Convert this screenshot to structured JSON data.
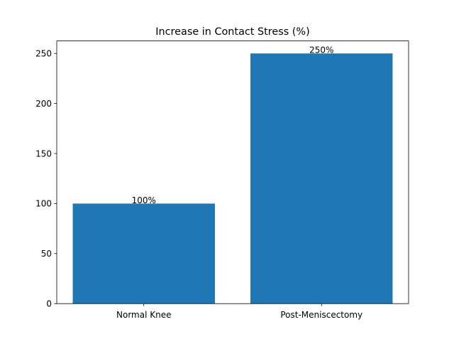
{
  "chart_data": {
    "type": "bar",
    "title": "Increase in Contact Stress (%)",
    "xlabel": "",
    "ylabel": "",
    "categories": [
      "Normal Knee",
      "Post-Meniscectomy"
    ],
    "values": [
      100,
      250
    ],
    "data_labels": [
      "100%",
      "250%"
    ],
    "ylim": [
      0,
      262.5
    ],
    "yticks": [
      0,
      50,
      100,
      150,
      200,
      250
    ],
    "grid": false,
    "legend": "none",
    "bar_color": "#1f77b4"
  }
}
